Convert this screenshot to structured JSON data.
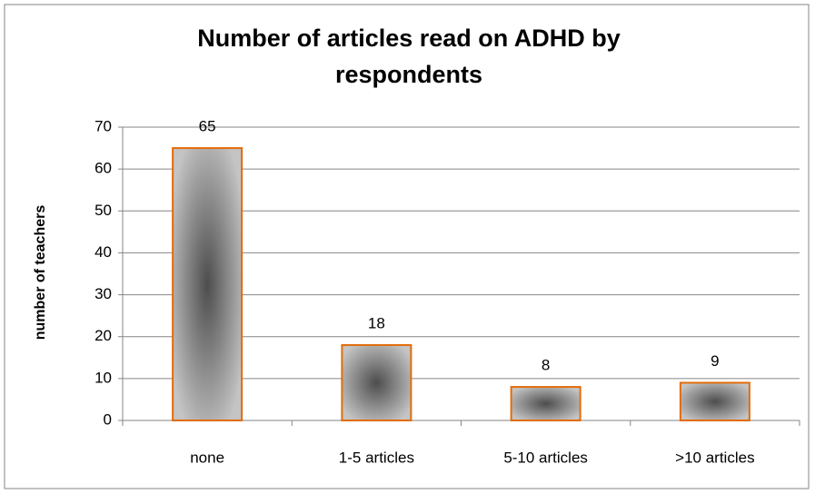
{
  "chart_data": {
    "type": "bar",
    "title": "Number of articles read on ADHD by respondents",
    "categories": [
      "none",
      "1-5 articles",
      "5-10 articles",
      ">10 articles"
    ],
    "values": [
      65,
      18,
      8,
      9
    ],
    "color": "#e36c0a",
    "y_label": "number of teachers",
    "ylim": [
      0,
      70
    ],
    "yticks": [
      0,
      10,
      20,
      30,
      40,
      50,
      60,
      70
    ],
    "grid": true
  }
}
